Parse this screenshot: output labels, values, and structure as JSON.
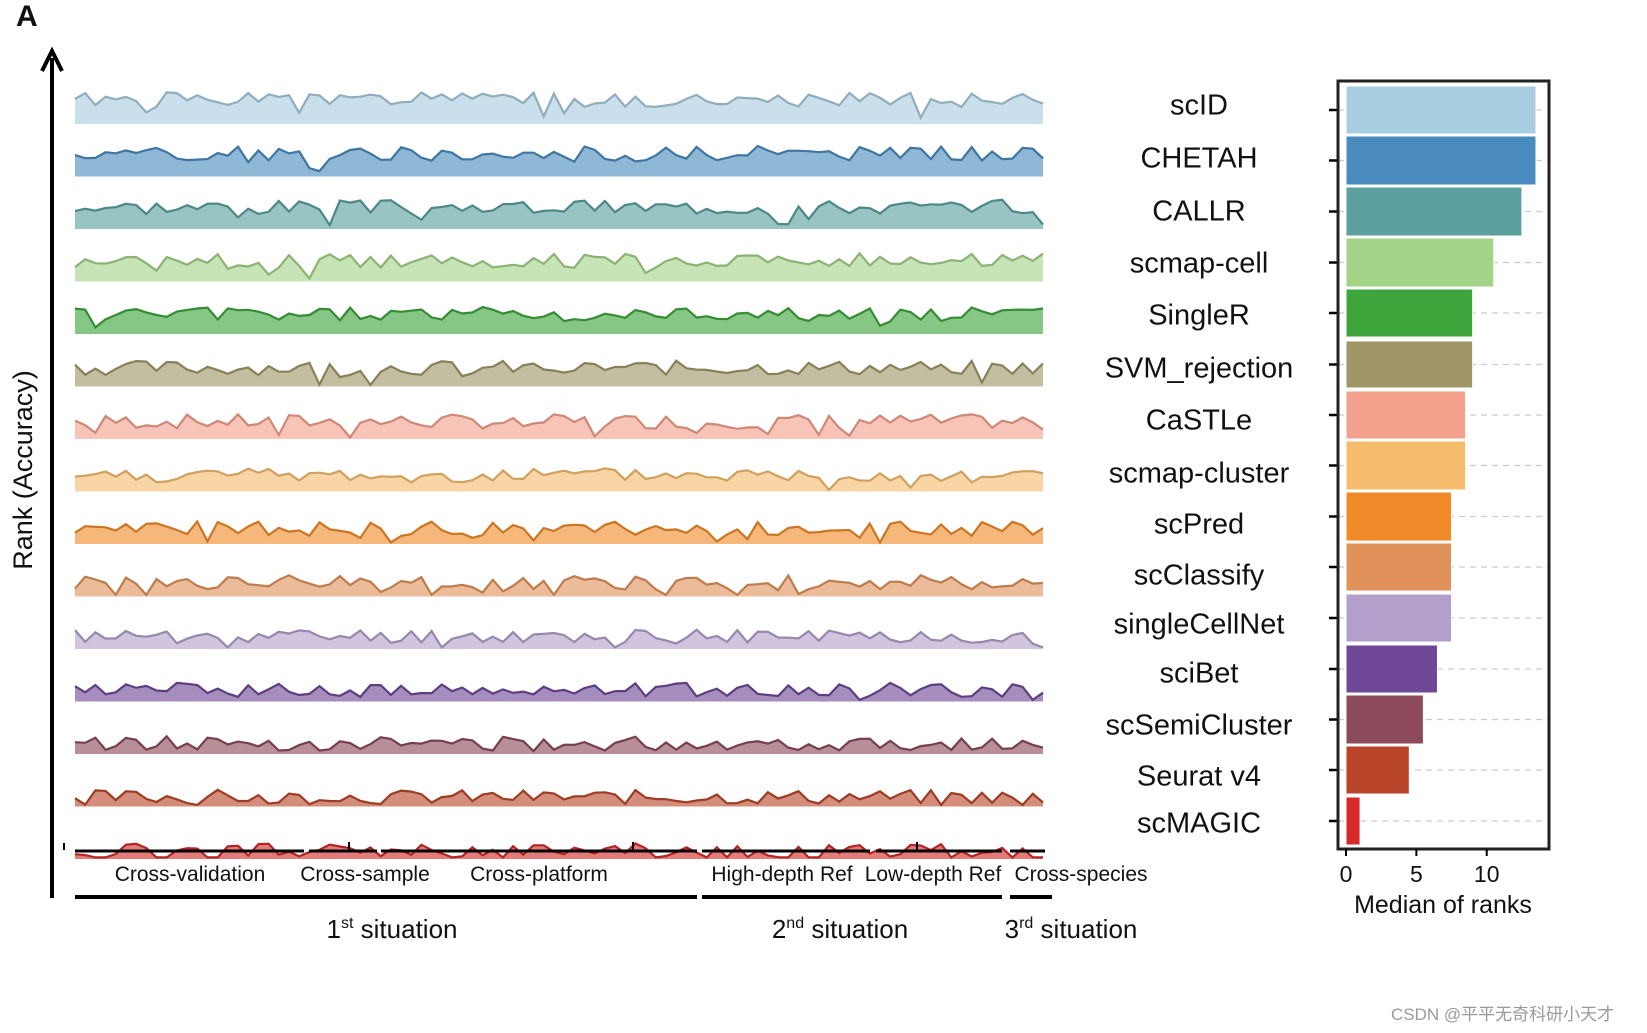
{
  "panel_letter": "A",
  "ylabel": "Rank (Accuracy)",
  "watermark": "CSDN @平平无奇科研小天才",
  "chart_data": [
    {
      "type": "area",
      "description_of_series": "stacked ridgeline area plots of per-dataset accuracy rank, one ridge per method",
      "ylabel": "Rank (Accuracy)",
      "methods": [
        {
          "name": "scID",
          "color": "#a8cce0"
        },
        {
          "name": "CHETAH",
          "color": "#4a8bbd"
        },
        {
          "name": "CALLR",
          "color": "#5b9f9f"
        },
        {
          "name": "scmap-cell",
          "color": "#a3d387"
        },
        {
          "name": "SingleR",
          "color": "#3da53c"
        },
        {
          "name": "SVM_rejection",
          "color": "#a09667"
        },
        {
          "name": "CaSTLe",
          "color": "#f3a08c"
        },
        {
          "name": "scmap-cluster",
          "color": "#f5bc6e"
        },
        {
          "name": "scPred",
          "color": "#f08a28"
        },
        {
          "name": "scClassify",
          "color": "#e0925a"
        },
        {
          "name": "singleCellNet",
          "color": "#b39fcb"
        },
        {
          "name": "sciBet",
          "color": "#6e4896"
        },
        {
          "name": "scSemiCluster",
          "color": "#8c4a5a"
        },
        {
          "name": "Seurat v4",
          "color": "#b9462a"
        },
        {
          "name": "scMAGIC",
          "color": "#d42a2a"
        }
      ],
      "groups": [
        {
          "label": "Cross-validation",
          "situation": 1
        },
        {
          "label": "Cross-sample",
          "situation": 1
        },
        {
          "label": "Cross-platform",
          "situation": 1
        },
        {
          "label": "High-depth Ref",
          "situation": 2
        },
        {
          "label": "Low-depth Ref",
          "situation": 2
        },
        {
          "label": "Cross-species",
          "situation": 3
        }
      ],
      "situations": [
        {
          "num": "1",
          "sup": "st",
          "text": " situation"
        },
        {
          "num": "2",
          "sup": "nd",
          "text": " situation"
        },
        {
          "num": "3",
          "sup": "rd",
          "text": " situation"
        }
      ]
    },
    {
      "type": "bar",
      "orientation": "horizontal",
      "categories": [
        "scID",
        "CHETAH",
        "CALLR",
        "scmap-cell",
        "SingleR",
        "SVM_rejection",
        "CaSTLe",
        "scmap-cluster",
        "scPred",
        "scClassify",
        "singleCellNet",
        "sciBet",
        "scSemiCluster",
        "Seurat v4",
        "scMAGIC"
      ],
      "values": [
        13.5,
        13.5,
        12.5,
        10.5,
        9,
        9,
        8.5,
        8.5,
        7.5,
        7.5,
        7.5,
        6.5,
        5.5,
        4.5,
        1
      ],
      "xlabel": "Median of ranks",
      "xticks": [
        "0",
        "5",
        "10"
      ],
      "xlim": [
        0,
        14
      ],
      "grid": "dashed horizontal"
    }
  ]
}
